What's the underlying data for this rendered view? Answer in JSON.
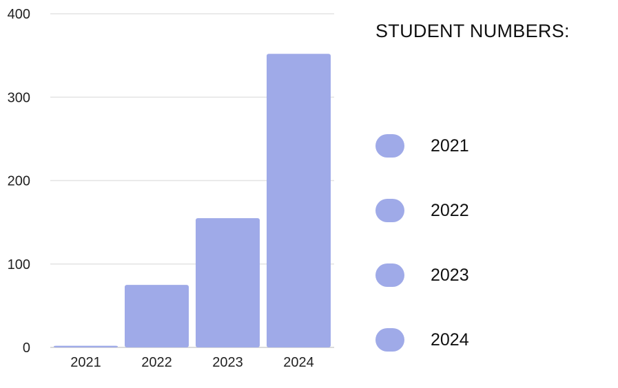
{
  "chart_data": {
    "type": "bar",
    "categories": [
      "2021",
      "2022",
      "2023",
      "2024"
    ],
    "values": [
      2,
      75,
      155,
      352
    ],
    "title": "",
    "xlabel": "",
    "ylabel": "",
    "ylim": [
      0,
      400
    ],
    "yticks": [
      0,
      100,
      200,
      300,
      400
    ],
    "grid": true,
    "bar_color": "#9faae8",
    "legend": {
      "title": "STUDENT NUMBERS:",
      "placement": "right",
      "items": [
        {
          "label": "2021",
          "color": "#9faae8"
        },
        {
          "label": "2022",
          "color": "#9faae8"
        },
        {
          "label": "2023",
          "color": "#9faae8"
        },
        {
          "label": "2024",
          "color": "#9faae8"
        }
      ]
    }
  }
}
